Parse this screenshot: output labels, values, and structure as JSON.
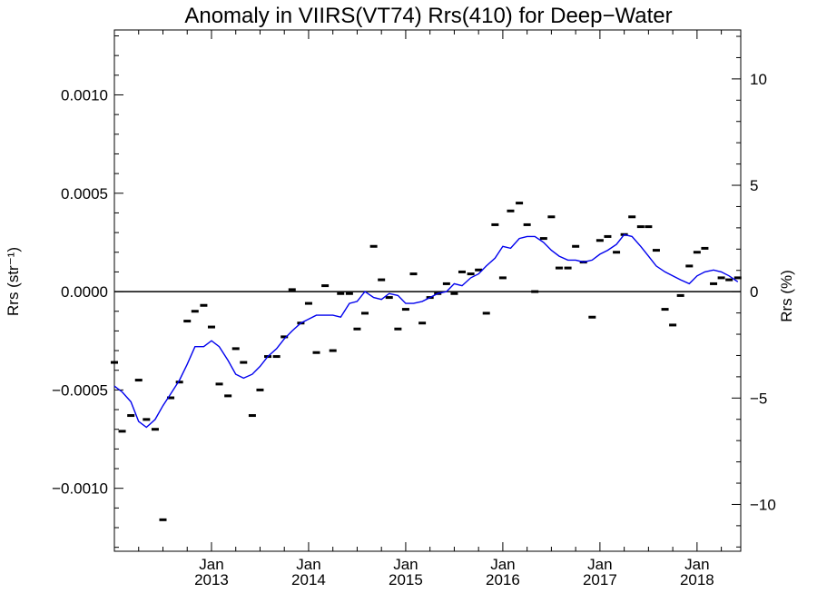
{
  "chart_data": {
    "type": "scatter",
    "title": "Anomaly in VIIRS(VT74) Rrs(410) for Deep−Water",
    "ylabel_left": "Rrs (str⁻¹)",
    "ylabel_right": "Rrs (%)",
    "xlabel": "",
    "ylim": [
      -0.00132,
      0.00133
    ],
    "ylim_right": [
      -12.2,
      12.3
    ],
    "xlim": [
      2012.0,
      2018.45
    ],
    "grid": false,
    "y_ticks_left": [
      {
        "value": 0.001,
        "label": "0.0010"
      },
      {
        "value": 0.0005,
        "label": "0.0005"
      },
      {
        "value": 0.0,
        "label": "0.0000"
      },
      {
        "value": -0.0005,
        "label": "−0.0005"
      },
      {
        "value": -0.001,
        "label": "−0.0010"
      }
    ],
    "y_ticks_right": [
      {
        "value": 10,
        "label": "10"
      },
      {
        "value": 5,
        "label": "5"
      },
      {
        "value": 0,
        "label": "0"
      },
      {
        "value": -5,
        "label": "−5"
      },
      {
        "value": -10,
        "label": "−10"
      }
    ],
    "x_ticks": [
      {
        "value": 2013.0,
        "label_top": "Jan",
        "label_bottom": "2013"
      },
      {
        "value": 2014.0,
        "label_top": "Jan",
        "label_bottom": "2014"
      },
      {
        "value": 2015.0,
        "label_top": "Jan",
        "label_bottom": "2015"
      },
      {
        "value": 2016.0,
        "label_top": "Jan",
        "label_bottom": "2016"
      },
      {
        "value": 2017.0,
        "label_top": "Jan",
        "label_bottom": "2017"
      },
      {
        "value": 2018.0,
        "label_top": "Jan",
        "label_bottom": "2018"
      }
    ],
    "zero_line": 0.0,
    "series": [
      {
        "color": "#000000",
        "marker": "dash",
        "points": [
          [
            2012.0,
            -0.00036
          ],
          [
            2012.08,
            -0.00071
          ],
          [
            2012.17,
            -0.00063
          ],
          [
            2012.25,
            -0.00045
          ],
          [
            2012.33,
            -0.00065
          ],
          [
            2012.42,
            -0.0007
          ],
          [
            2012.5,
            -0.00116
          ],
          [
            2012.58,
            -0.00054
          ],
          [
            2012.67,
            -0.00046
          ],
          [
            2012.75,
            -0.00015
          ],
          [
            2012.83,
            -0.0001
          ],
          [
            2012.92,
            -7e-05
          ],
          [
            2013.0,
            -0.00018
          ],
          [
            2013.08,
            -0.00047
          ],
          [
            2013.17,
            -0.00053
          ],
          [
            2013.25,
            -0.00029
          ],
          [
            2013.33,
            -0.00036
          ],
          [
            2013.42,
            -0.00063
          ],
          [
            2013.5,
            -0.0005
          ],
          [
            2013.58,
            -0.00033
          ],
          [
            2013.67,
            -0.00033
          ],
          [
            2013.75,
            -0.00023
          ],
          [
            2013.83,
            1e-05
          ],
          [
            2013.92,
            -0.00016
          ],
          [
            2014.0,
            -6e-05
          ],
          [
            2014.08,
            -0.00031
          ],
          [
            2014.17,
            3e-05
          ],
          [
            2014.25,
            -0.0003
          ],
          [
            2014.33,
            -1e-05
          ],
          [
            2014.42,
            -1e-05
          ],
          [
            2014.5,
            -0.00019
          ],
          [
            2014.58,
            -0.00011
          ],
          [
            2014.67,
            0.00023
          ],
          [
            2014.75,
            6e-05
          ],
          [
            2014.83,
            -3e-05
          ],
          [
            2014.92,
            -0.00019
          ],
          [
            2015.0,
            -9e-05
          ],
          [
            2015.08,
            9e-05
          ],
          [
            2015.17,
            -0.00016
          ],
          [
            2015.25,
            -3e-05
          ],
          [
            2015.33,
            -1e-05
          ],
          [
            2015.42,
            4e-05
          ],
          [
            2015.5,
            -1e-05
          ],
          [
            2015.58,
            0.0001
          ],
          [
            2015.67,
            9e-05
          ],
          [
            2015.75,
            0.00011
          ],
          [
            2015.83,
            -0.00011
          ],
          [
            2015.92,
            0.00034
          ],
          [
            2016.0,
            7e-05
          ],
          [
            2016.08,
            0.00041
          ],
          [
            2016.17,
            0.00045
          ],
          [
            2016.25,
            0.00034
          ],
          [
            2016.33,
            0.0
          ],
          [
            2016.42,
            0.00027
          ],
          [
            2016.5,
            0.00038
          ],
          [
            2016.58,
            0.00012
          ],
          [
            2016.67,
            0.00012
          ],
          [
            2016.75,
            0.00023
          ],
          [
            2016.83,
            0.00015
          ],
          [
            2016.92,
            -0.00013
          ],
          [
            2017.0,
            0.00026
          ],
          [
            2017.08,
            0.00028
          ],
          [
            2017.17,
            0.0002
          ],
          [
            2017.25,
            0.00029
          ],
          [
            2017.33,
            0.00038
          ],
          [
            2017.42,
            0.00033
          ],
          [
            2017.5,
            0.00033
          ],
          [
            2017.58,
            0.00021
          ],
          [
            2017.67,
            -9e-05
          ],
          [
            2017.75,
            -0.00017
          ],
          [
            2017.83,
            -2e-05
          ],
          [
            2017.92,
            0.00013
          ],
          [
            2018.0,
            0.0002
          ],
          [
            2018.08,
            0.00022
          ],
          [
            2018.17,
            4e-05
          ],
          [
            2018.25,
            7e-05
          ],
          [
            2018.33,
            6e-05
          ],
          [
            2018.42,
            7e-05
          ]
        ]
      },
      {
        "color": "#0000ee",
        "marker": "line",
        "points": [
          [
            2012.0,
            -0.00048
          ],
          [
            2012.08,
            -0.00051
          ],
          [
            2012.17,
            -0.00056
          ],
          [
            2012.25,
            -0.00066
          ],
          [
            2012.33,
            -0.00069
          ],
          [
            2012.42,
            -0.00065
          ],
          [
            2012.5,
            -0.00058
          ],
          [
            2012.58,
            -0.00052
          ],
          [
            2012.67,
            -0.00045
          ],
          [
            2012.75,
            -0.00037
          ],
          [
            2012.83,
            -0.00028
          ],
          [
            2012.92,
            -0.00028
          ],
          [
            2013.0,
            -0.00025
          ],
          [
            2013.08,
            -0.00028
          ],
          [
            2013.17,
            -0.00035
          ],
          [
            2013.25,
            -0.00042
          ],
          [
            2013.33,
            -0.00044
          ],
          [
            2013.42,
            -0.00042
          ],
          [
            2013.5,
            -0.00038
          ],
          [
            2013.58,
            -0.00033
          ],
          [
            2013.67,
            -0.00029
          ],
          [
            2013.75,
            -0.00024
          ],
          [
            2013.83,
            -0.0002
          ],
          [
            2013.92,
            -0.00016
          ],
          [
            2014.0,
            -0.00014
          ],
          [
            2014.08,
            -0.00012
          ],
          [
            2014.17,
            -0.00012
          ],
          [
            2014.25,
            -0.00012
          ],
          [
            2014.33,
            -0.00013
          ],
          [
            2014.42,
            -6e-05
          ],
          [
            2014.5,
            -5e-05
          ],
          [
            2014.58,
            0.0
          ],
          [
            2014.67,
            -3e-05
          ],
          [
            2014.75,
            -4e-05
          ],
          [
            2014.83,
            -1e-05
          ],
          [
            2014.92,
            -2e-05
          ],
          [
            2015.0,
            -6e-05
          ],
          [
            2015.08,
            -6e-05
          ],
          [
            2015.17,
            -5e-05
          ],
          [
            2015.25,
            -3e-05
          ],
          [
            2015.33,
            -1e-05
          ],
          [
            2015.42,
            0.0
          ],
          [
            2015.5,
            4e-05
          ],
          [
            2015.58,
            3e-05
          ],
          [
            2015.67,
            7e-05
          ],
          [
            2015.75,
            9e-05
          ],
          [
            2015.83,
            0.00013
          ],
          [
            2015.92,
            0.00017
          ],
          [
            2016.0,
            0.00023
          ],
          [
            2016.08,
            0.00022
          ],
          [
            2016.17,
            0.00027
          ],
          [
            2016.25,
            0.00028
          ],
          [
            2016.33,
            0.00028
          ],
          [
            2016.42,
            0.00025
          ],
          [
            2016.5,
            0.00021
          ],
          [
            2016.58,
            0.00018
          ],
          [
            2016.67,
            0.00016
          ],
          [
            2016.75,
            0.00016
          ],
          [
            2016.83,
            0.00015
          ],
          [
            2016.92,
            0.00016
          ],
          [
            2017.0,
            0.00019
          ],
          [
            2017.08,
            0.00021
          ],
          [
            2017.17,
            0.00024
          ],
          [
            2017.25,
            0.00029
          ],
          [
            2017.33,
            0.00028
          ],
          [
            2017.42,
            0.00023
          ],
          [
            2017.5,
            0.00018
          ],
          [
            2017.58,
            0.00013
          ],
          [
            2017.67,
            0.0001
          ],
          [
            2017.75,
            8e-05
          ],
          [
            2017.83,
            6e-05
          ],
          [
            2017.92,
            4e-05
          ],
          [
            2018.0,
            8e-05
          ],
          [
            2018.08,
            0.0001
          ],
          [
            2018.17,
            0.00011
          ],
          [
            2018.25,
            0.0001
          ],
          [
            2018.33,
            8e-05
          ],
          [
            2018.42,
            5e-05
          ]
        ]
      }
    ]
  }
}
